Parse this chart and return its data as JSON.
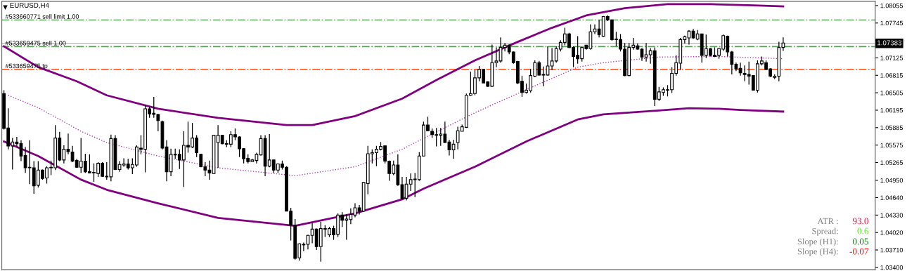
{
  "chart_data": {
    "type": "candlestick",
    "title": "EURUSD,H4",
    "categories": [
      null,
      null,
      null,
      null,
      null,
      null,
      null,
      null,
      null,
      null,
      null,
      null,
      null,
      null,
      null,
      null,
      null,
      null,
      null,
      null,
      null,
      null,
      null,
      null,
      null,
      null,
      null,
      null,
      null,
      null,
      null,
      null,
      null,
      null,
      null,
      null,
      null,
      null,
      null,
      null,
      null,
      null,
      null,
      null,
      null,
      null,
      null,
      null,
      null,
      null,
      null,
      null,
      null,
      null,
      null,
      null,
      null,
      null,
      null,
      null,
      null,
      null,
      null,
      null,
      null,
      null,
      null,
      null,
      null,
      null,
      null,
      null,
      null,
      null,
      null,
      null,
      null,
      null,
      null,
      null,
      null,
      null,
      null,
      null,
      null,
      null,
      null,
      null,
      null,
      null,
      null,
      null,
      null,
      null,
      null,
      null,
      null,
      null,
      null,
      null,
      null,
      null,
      null,
      null,
      null,
      null,
      null,
      null,
      null,
      null,
      null,
      null,
      null,
      null,
      null,
      null,
      null,
      null,
      null,
      null,
      null,
      null,
      null,
      null,
      null,
      null,
      null,
      null,
      null,
      null,
      null,
      null,
      null,
      null,
      null,
      null,
      null,
      null,
      null,
      null,
      null,
      null,
      null,
      null,
      null,
      null,
      null,
      null,
      null,
      null,
      null,
      null,
      null,
      null,
      null,
      null,
      null,
      null,
      null,
      null,
      null,
      null,
      null,
      null,
      null,
      null,
      null,
      null,
      null,
      null,
      null,
      null,
      null,
      null,
      null,
      null,
      null,
      null,
      null,
      null,
      null,
      null,
      null,
      null,
      null,
      null,
      null,
      null,
      null,
      null,
      null,
      null,
      null,
      null,
      null,
      null,
      null,
      null,
      null,
      null,
      null,
      null,
      null,
      null
    ],
    "ohlc": [
      [
        1.0649,
        1.0655,
        1.0585,
        1.0587
      ],
      [
        1.0588,
        1.0623,
        1.055,
        1.0556
      ],
      [
        1.0556,
        1.057,
        1.0514,
        1.0563
      ],
      [
        1.0563,
        1.0572,
        1.0554,
        1.056
      ],
      [
        1.056,
        1.0566,
        1.0529,
        1.0538
      ],
      [
        1.0539,
        1.0554,
        1.0508,
        1.0517
      ],
      [
        1.0518,
        1.0566,
        1.0488,
        1.0517
      ],
      [
        1.0517,
        1.0529,
        1.0471,
        1.0485
      ],
      [
        1.0486,
        1.0529,
        1.0482,
        1.0513
      ],
      [
        1.0513,
        1.0514,
        1.0496,
        1.0498
      ],
      [
        1.0499,
        1.052,
        1.0489,
        1.0517
      ],
      [
        1.0518,
        1.053,
        1.0504,
        1.0517
      ],
      [
        1.0517,
        1.0593,
        1.0513,
        1.057
      ],
      [
        1.057,
        1.0581,
        1.0529,
        1.0531
      ],
      [
        1.0531,
        1.0557,
        1.0525,
        1.055
      ],
      [
        1.055,
        1.0578,
        1.0541,
        1.0546
      ],
      [
        1.0545,
        1.0556,
        1.0527,
        1.0529
      ],
      [
        1.053,
        1.0533,
        1.0517,
        1.0518
      ],
      [
        1.0518,
        1.057,
        1.0508,
        1.0529
      ],
      [
        1.0529,
        1.0542,
        1.0508,
        1.051
      ],
      [
        1.051,
        1.0541,
        1.0507,
        1.0508
      ],
      [
        1.0508,
        1.0525,
        1.0492,
        1.0509
      ],
      [
        1.0507,
        1.0527,
        1.0501,
        1.0525
      ],
      [
        1.0525,
        1.0527,
        1.0501,
        1.0502
      ],
      [
        1.0502,
        1.0527,
        1.0496,
        1.0501
      ],
      [
        1.0501,
        1.0576,
        1.0493,
        1.0569
      ],
      [
        1.0569,
        1.0575,
        1.0513,
        1.0514
      ],
      [
        1.0514,
        1.0529,
        1.051,
        1.0523
      ],
      [
        1.0522,
        1.0534,
        1.0519,
        1.0524
      ],
      [
        1.0524,
        1.0533,
        1.0514,
        1.0517
      ],
      [
        1.0517,
        1.0534,
        1.0506,
        1.0523
      ],
      [
        1.0522,
        1.0557,
        1.0519,
        1.0554
      ],
      [
        1.0552,
        1.0575,
        1.0541,
        1.055
      ],
      [
        1.055,
        1.0629,
        1.0509,
        1.0622
      ],
      [
        1.0622,
        1.0625,
        1.0606,
        1.0613
      ],
      [
        1.0614,
        1.0643,
        1.0606,
        1.0612
      ],
      [
        1.0612,
        1.0613,
        1.0582,
        1.0601
      ],
      [
        1.0599,
        1.0601,
        1.055,
        1.0552
      ],
      [
        1.0554,
        1.0566,
        1.0493,
        1.051
      ],
      [
        1.051,
        1.0551,
        1.0502,
        1.0541
      ],
      [
        1.0541,
        1.0551,
        1.0533,
        1.054
      ],
      [
        1.0541,
        1.055,
        1.0515,
        1.0531
      ],
      [
        1.0531,
        1.0582,
        1.0483,
        1.0557
      ],
      [
        1.0557,
        1.0599,
        1.0544,
        1.0554
      ],
      [
        1.0554,
        1.0597,
        1.0552,
        1.057
      ],
      [
        1.057,
        1.0575,
        1.0536,
        1.0544
      ],
      [
        1.0541,
        1.0542,
        1.0518,
        1.0519
      ],
      [
        1.0519,
        1.0527,
        1.0502,
        1.0513
      ],
      [
        1.0513,
        1.053,
        1.0496,
        1.0508
      ],
      [
        1.0507,
        1.0575,
        1.0507,
        1.0575
      ],
      [
        1.0562,
        1.0593,
        1.0517,
        1.0575
      ],
      [
        1.0575,
        1.0575,
        1.0559,
        1.056
      ],
      [
        1.056,
        1.0566,
        1.0554,
        1.0559
      ],
      [
        1.0559,
        1.0582,
        1.0554,
        1.0576
      ],
      [
        1.0576,
        1.0587,
        1.0566,
        1.0572
      ],
      [
        1.0572,
        1.0573,
        1.0536,
        1.0551
      ],
      [
        1.0551,
        1.0552,
        1.0525,
        1.0533
      ],
      [
        1.0534,
        1.0541,
        1.0525,
        1.0528
      ],
      [
        1.0528,
        1.0533,
        1.0527,
        1.0531
      ],
      [
        1.053,
        1.0544,
        1.0525,
        1.0541
      ],
      [
        1.054,
        1.0575,
        1.0539,
        1.0569
      ],
      [
        1.0569,
        1.0575,
        1.0502,
        1.052
      ],
      [
        1.052,
        1.0577,
        1.0518,
        1.0531
      ],
      [
        1.0531,
        1.0531,
        1.0508,
        1.0513
      ],
      [
        1.0513,
        1.0525,
        1.0508,
        1.0524
      ],
      [
        1.0524,
        1.053,
        1.0514,
        1.0518
      ],
      [
        1.0518,
        1.052,
        1.044,
        1.044
      ],
      [
        1.044,
        1.0446,
        1.0388,
        1.0415
      ],
      [
        1.0415,
        1.0426,
        1.0354,
        1.0356
      ],
      [
        1.0357,
        1.0383,
        1.0352,
        1.0382
      ],
      [
        1.038,
        1.0384,
        1.0369,
        1.0381
      ],
      [
        1.0381,
        1.0398,
        1.0372,
        1.0397
      ],
      [
        1.0397,
        1.0419,
        1.0383,
        1.0408
      ],
      [
        1.0408,
        1.0409,
        1.0371,
        1.0377
      ],
      [
        1.0377,
        1.0421,
        1.035,
        1.0409
      ],
      [
        1.0409,
        1.0415,
        1.0394,
        1.0408
      ],
      [
        1.0398,
        1.0412,
        1.0394,
        1.0409
      ],
      [
        1.0409,
        1.0414,
        1.0389,
        1.0398
      ],
      [
        1.0399,
        1.0436,
        1.0394,
        1.0433
      ],
      [
        1.0433,
        1.0438,
        1.0412,
        1.0424
      ],
      [
        1.0424,
        1.0434,
        1.0389,
        1.0426
      ],
      [
        1.0425,
        1.0445,
        1.0417,
        1.0434
      ],
      [
        1.0433,
        1.0454,
        1.0429,
        1.0446
      ],
      [
        1.0446,
        1.0451,
        1.0434,
        1.044
      ],
      [
        1.044,
        1.0492,
        1.0439,
        1.0491
      ],
      [
        1.0489,
        1.0556,
        1.047,
        1.0542
      ],
      [
        1.0542,
        1.055,
        1.0525,
        1.0544
      ],
      [
        1.0544,
        1.0556,
        1.052,
        1.055
      ],
      [
        1.055,
        1.0563,
        1.0548,
        1.0555
      ],
      [
        1.0556,
        1.0557,
        1.0525,
        1.0529
      ],
      [
        1.0529,
        1.053,
        1.0494,
        1.0507
      ],
      [
        1.0507,
        1.053,
        1.0504,
        1.0522
      ],
      [
        1.0522,
        1.0541,
        1.0485,
        1.0487
      ],
      [
        1.0487,
        1.0501,
        1.0461,
        1.0463
      ],
      [
        1.0463,
        1.0501,
        1.0459,
        1.0488
      ],
      [
        1.0488,
        1.0507,
        1.0476,
        1.0496
      ],
      [
        1.0496,
        1.0508,
        1.0465,
        1.0497
      ],
      [
        1.0496,
        1.0545,
        1.0494,
        1.0538
      ],
      [
        1.0538,
        1.0599,
        1.0538,
        1.0593
      ],
      [
        1.0593,
        1.0608,
        1.0582,
        1.0583
      ],
      [
        1.0582,
        1.0587,
        1.057,
        1.0576
      ],
      [
        1.0576,
        1.0588,
        1.0555,
        1.0575
      ],
      [
        1.0575,
        1.0588,
        1.0556,
        1.0577
      ],
      [
        1.0577,
        1.0599,
        1.0561,
        1.0562
      ],
      [
        1.0563,
        1.0567,
        1.0539,
        1.0549
      ],
      [
        1.0549,
        1.0567,
        1.0533,
        1.0559
      ],
      [
        1.0562,
        1.059,
        1.055,
        1.0583
      ],
      [
        1.0582,
        1.0594,
        1.0582,
        1.059
      ],
      [
        1.0589,
        1.0649,
        1.0588,
        1.0646
      ],
      [
        1.0646,
        1.0688,
        1.0645,
        1.0649
      ],
      [
        1.0649,
        1.0691,
        1.0646,
        1.0677
      ],
      [
        1.0677,
        1.0698,
        1.0671,
        1.0692
      ],
      [
        1.0692,
        1.0693,
        1.0668,
        1.0668
      ],
      [
        1.067,
        1.0671,
        1.0661,
        1.0662
      ],
      [
        1.0662,
        1.0736,
        1.0661,
        1.0704
      ],
      [
        1.0704,
        1.0731,
        1.0696,
        1.0707
      ],
      [
        1.0707,
        1.0749,
        1.0704,
        1.0731
      ],
      [
        1.0731,
        1.0739,
        1.0724,
        1.0735
      ],
      [
        1.0735,
        1.0736,
        1.0719,
        1.0723
      ],
      [
        1.0723,
        1.0724,
        1.0702,
        1.0704
      ],
      [
        1.0706,
        1.0707,
        1.0666,
        1.0668
      ],
      [
        1.0671,
        1.0681,
        1.0643,
        1.0651
      ],
      [
        1.0651,
        1.0667,
        1.0649,
        1.0655
      ],
      [
        1.0654,
        1.0693,
        1.0651,
        1.0681
      ],
      [
        1.068,
        1.0708,
        1.0678,
        1.0704
      ],
      [
        1.0704,
        1.0707,
        1.0681,
        1.0682
      ],
      [
        1.0683,
        1.0697,
        1.0662,
        1.0682
      ],
      [
        1.0682,
        1.0733,
        1.0681,
        1.0698
      ],
      [
        1.0698,
        1.073,
        1.0691,
        1.0707
      ],
      [
        1.0707,
        1.0733,
        1.0704,
        1.0729
      ],
      [
        1.0728,
        1.0744,
        1.0724,
        1.074
      ],
      [
        1.074,
        1.0766,
        1.0735,
        1.0755
      ],
      [
        1.0755,
        1.0757,
        1.073,
        1.0731
      ],
      [
        1.0731,
        1.0733,
        1.0696,
        1.0715
      ],
      [
        1.0717,
        1.0751,
        1.0702,
        1.0711
      ],
      [
        1.0711,
        1.0733,
        1.0706,
        1.0731
      ],
      [
        1.0735,
        1.0735,
        1.0727,
        1.0729
      ],
      [
        1.0729,
        1.0772,
        1.0727,
        1.0759
      ],
      [
        1.0759,
        1.0772,
        1.0755,
        1.0764
      ],
      [
        1.0764,
        1.078,
        1.0749,
        1.0754
      ],
      [
        1.0751,
        1.0787,
        1.075,
        1.0786
      ],
      [
        1.0786,
        1.0788,
        1.0778,
        1.078
      ],
      [
        1.078,
        1.078,
        1.0743,
        1.0745
      ],
      [
        1.0746,
        1.0759,
        1.0733,
        1.0745
      ],
      [
        1.0745,
        1.0755,
        1.0724,
        1.0728
      ],
      [
        1.0728,
        1.0739,
        1.068,
        1.0681
      ],
      [
        1.0681,
        1.0739,
        1.068,
        1.0731
      ],
      [
        1.0731,
        1.0748,
        1.0727,
        1.0735
      ],
      [
        1.0734,
        1.0738,
        1.0727,
        1.0728
      ],
      [
        1.0728,
        1.073,
        1.0707,
        1.0714
      ],
      [
        1.0714,
        1.0739,
        1.0706,
        1.0718
      ],
      [
        1.0718,
        1.073,
        1.0702,
        1.0725
      ],
      [
        1.0725,
        1.0731,
        1.0627,
        1.0639
      ],
      [
        1.0639,
        1.0661,
        1.0636,
        1.0652
      ],
      [
        1.0651,
        1.066,
        1.0645,
        1.0656
      ],
      [
        1.0656,
        1.0664,
        1.0644,
        1.0655
      ],
      [
        1.0656,
        1.0696,
        1.065,
        1.0685
      ],
      [
        1.0685,
        1.0717,
        1.0681,
        1.0704
      ],
      [
        1.0703,
        1.0748,
        1.0691,
        1.0745
      ],
      [
        1.0745,
        1.0752,
        1.0738,
        1.075
      ],
      [
        1.0748,
        1.0762,
        1.0736,
        1.076
      ],
      [
        1.076,
        1.0764,
        1.0746,
        1.0748
      ],
      [
        1.0746,
        1.0762,
        1.0744,
        1.0755
      ],
      [
        1.0755,
        1.0755,
        1.0704,
        1.0717
      ],
      [
        1.0717,
        1.0754,
        1.0712,
        1.0729
      ],
      [
        1.0729,
        1.073,
        1.0715,
        1.0717
      ],
      [
        1.0717,
        1.0731,
        1.0714,
        1.0715
      ],
      [
        1.0717,
        1.073,
        1.0711,
        1.0729
      ],
      [
        1.0728,
        1.0754,
        1.0725,
        1.0752
      ],
      [
        1.0751,
        1.0752,
        1.0715,
        1.0723
      ],
      [
        1.0723,
        1.0725,
        1.0683,
        1.0701
      ],
      [
        1.0701,
        1.0704,
        1.0689,
        1.0693
      ],
      [
        1.0694,
        1.0704,
        1.0681,
        1.0686
      ],
      [
        1.0685,
        1.0699,
        1.0671,
        1.0683
      ],
      [
        1.0683,
        1.0706,
        1.0665,
        1.068
      ],
      [
        1.0681,
        1.0681,
        1.0655,
        1.0655
      ],
      [
        1.0655,
        1.0708,
        1.0651,
        1.0702
      ],
      [
        1.0702,
        1.0715,
        1.0699,
        1.0707
      ],
      [
        1.0704,
        1.0708,
        1.0691,
        1.0692
      ],
      [
        1.0693,
        1.0694,
        1.0678,
        1.068
      ],
      [
        1.0678,
        1.0683,
        1.0675,
        1.068
      ],
      [
        1.068,
        1.0741,
        1.0671,
        1.0731
      ],
      [
        1.0731,
        1.0749,
        1.0725,
        1.0739
      ],
      null,
      null,
      null,
      null,
      null,
      null,
      null,
      null,
      null,
      null,
      null,
      null,
      null,
      null,
      null,
      null,
      null,
      null,
      null,
      null,
      null
    ],
    "series": [
      {
        "type": "line",
        "color": "#800080",
        "line_style": "solid",
        "values": [
          1.0733,
          null,
          null,
          null,
          null,
          null,
          null,
          null,
          1.0696,
          null,
          null,
          null,
          null,
          null,
          null,
          null,
          null,
          1.0671,
          null,
          null,
          null,
          null,
          null,
          null,
          1.0646,
          null,
          null,
          null,
          null,
          null,
          null,
          null,
          null,
          null,
          null,
          null,
          1.0622,
          null,
          null,
          null,
          null,
          null,
          null,
          null,
          null,
          null,
          null,
          null,
          null,
          null,
          1.0606,
          null,
          null,
          null,
          null,
          null,
          null,
          null,
          null,
          null,
          null,
          null,
          null,
          null,
          null,
          null,
          1.0593,
          null,
          null,
          null,
          null,
          null,
          1.0593,
          null,
          null,
          null,
          null,
          null,
          null,
          null,
          null,
          null,
          1.0609,
          null,
          null,
          null,
          null,
          null,
          null,
          null,
          null,
          null,
          null,
          1.064,
          null,
          null,
          null,
          null,
          null,
          null,
          null,
          1.0673,
          null,
          null,
          null,
          null,
          null,
          null,
          null,
          null,
          1.0708,
          null,
          null,
          null,
          null,
          null,
          null,
          null,
          null,
          null,
          1.0741,
          null,
          null,
          null,
          null,
          null,
          null,
          null,
          1.0766,
          null,
          null,
          null,
          null,
          null,
          null,
          null,
          1.0788,
          null,
          null,
          null,
          null,
          null,
          null,
          null,
          null,
          1.0801,
          null,
          null,
          null,
          null,
          null,
          null,
          null,
          null,
          null,
          1.0808,
          null,
          null,
          null,
          null,
          null,
          null,
          null,
          null,
          null,
          1.0808,
          null,
          null,
          null,
          null,
          null,
          null,
          null,
          null,
          null,
          1.0806,
          null,
          null,
          null,
          null,
          null,
          null,
          1.0804,
          null,
          null,
          null,
          null,
          null,
          null,
          null,
          null,
          null,
          null,
          null,
          null,
          null,
          null,
          null,
          null,
          null,
          null,
          null,
          null,
          null
        ]
      },
      {
        "type": "line",
        "color": "#b040b0",
        "line_style": "dotted",
        "values": [
          null,
          1.0646,
          null,
          null,
          null,
          null,
          null,
          null,
          1.0624,
          null,
          null,
          null,
          null,
          null,
          null,
          null,
          null,
          null,
          1.0582,
          null,
          null,
          null,
          null,
          null,
          1.0562,
          null,
          null,
          null,
          null,
          null,
          null,
          null,
          null,
          null,
          null,
          null,
          1.0538,
          null,
          null,
          null,
          null,
          null,
          null,
          null,
          null,
          null,
          null,
          null,
          null,
          null,
          1.0517,
          null,
          null,
          null,
          null,
          null,
          null,
          null,
          null,
          null,
          null,
          null,
          null,
          null,
          null,
          null,
          null,
          null,
          1.0503,
          null,
          null,
          null,
          null,
          null,
          null,
          null,
          null,
          null,
          null,
          null,
          null,
          null,
          1.0519,
          null,
          null,
          null,
          null,
          null,
          null,
          null,
          null,
          null,
          null,
          1.055,
          null,
          null,
          null,
          null,
          null,
          null,
          null,
          1.0581,
          null,
          null,
          null,
          null,
          null,
          null,
          null,
          null,
          1.0615,
          null,
          null,
          null,
          null,
          null,
          null,
          null,
          null,
          null,
          null,
          null,
          1.0656,
          null,
          null,
          null,
          null,
          null,
          null,
          null,
          null,
          null,
          null,
          null,
          1.0696,
          null,
          null,
          null,
          null,
          null,
          1.0704,
          null,
          null,
          null,
          null,
          null,
          null,
          null,
          null,
          null,
          null,
          null,
          null,
          1.0714,
          null,
          null,
          null,
          null,
          null,
          null,
          null,
          null,
          null,
          null,
          null,
          null,
          null,
          1.0715,
          null,
          null,
          null,
          null,
          null,
          null,
          null,
          null,
          null,
          null,
          null,
          null,
          null,
          null,
          1.0711,
          null,
          null,
          null,
          null,
          null,
          null,
          null,
          null,
          null,
          null,
          null,
          null,
          null,
          null,
          null,
          null,
          null,
          null,
          null,
          null,
          null
        ]
      },
      {
        "type": "line",
        "color": "#800080",
        "line_style": "solid",
        "values": [
          1.0564,
          null,
          null,
          null,
          null,
          null,
          null,
          null,
          1.0538,
          null,
          null,
          null,
          null,
          null,
          null,
          null,
          null,
          null,
          1.0496,
          null,
          null,
          null,
          null,
          null,
          1.0478,
          null,
          null,
          null,
          null,
          null,
          null,
          null,
          null,
          null,
          null,
          null,
          1.0454,
          null,
          null,
          null,
          null,
          null,
          null,
          null,
          null,
          null,
          null,
          null,
          null,
          null,
          1.0428,
          null,
          null,
          null,
          null,
          null,
          null,
          null,
          null,
          null,
          null,
          null,
          null,
          null,
          null,
          null,
          null,
          null,
          1.0414,
          null,
          null,
          null,
          null,
          null,
          null,
          null,
          null,
          null,
          null,
          null,
          null,
          null,
          1.0436,
          null,
          null,
          null,
          null,
          null,
          null,
          null,
          null,
          null,
          null,
          1.0461,
          null,
          null,
          null,
          null,
          1.048,
          null,
          null,
          null,
          null,
          null,
          null,
          null,
          null,
          null,
          null,
          null,
          1.0519,
          null,
          null,
          null,
          null,
          null,
          null,
          null,
          null,
          null,
          null,
          null,
          1.0564,
          null,
          null,
          null,
          null,
          null,
          null,
          null,
          null,
          null,
          null,
          null,
          1.0603,
          null,
          null,
          null,
          null,
          null,
          1.0612,
          null,
          null,
          null,
          null,
          null,
          null,
          null,
          null,
          null,
          null,
          null,
          null,
          1.0619,
          null,
          null,
          null,
          null,
          null,
          null,
          1.0623,
          null,
          null,
          null,
          null,
          null,
          null,
          1.0622,
          null,
          null,
          null,
          null,
          1.062,
          null,
          null,
          null,
          null,
          null,
          null,
          null,
          null,
          null,
          1.0617,
          null,
          null,
          null,
          null,
          null,
          null,
          null,
          null,
          null,
          null,
          null,
          null,
          null,
          null,
          null,
          null,
          null,
          null,
          null,
          null,
          null
        ]
      }
    ],
    "ylim": [
      1.0336,
      1.0813
    ],
    "yticks": [
      1.08055,
      1.07745,
      {
        "value": 1.07435,
        "label": null
      },
      1.07125,
      1.06815,
      1.06505,
      1.06195,
      1.05885,
      1.05575,
      1.05265,
      {
        "value": 1.0495,
        "label": "1.04950"
      },
      {
        "value": 1.0464,
        "label": "1.04640"
      },
      {
        "value": 1.0433,
        "label": "1.04330"
      },
      {
        "value": 1.0402,
        "label": "1.04020"
      },
      {
        "value": 1.0371,
        "label": "1.03710"
      },
      {
        "value": 1.034,
        "label": "1.03400"
      }
    ],
    "tick_labels": "y",
    "grid": false,
    "legend": false,
    "ref_lines": [
      {
        "axis": "y",
        "value": 1.07798,
        "label": "#533660771 sell limit 1.00",
        "color": "#5aa05a",
        "line_style": "dashdot"
      },
      {
        "axis": "y",
        "value": 1.07383,
        "label": "1.07383",
        "color": "#c0c0c0",
        "line_style": "solid"
      },
      {
        "axis": "y",
        "value": 1.07325,
        "label": "#533659475 sell 1.00",
        "color": "#5aa05a",
        "line_style": "dashdot"
      },
      {
        "axis": "y",
        "value": 1.06919,
        "label": "#533659475 tp",
        "color": "#ff6030",
        "line_style": "dashdot"
      }
    ],
    "annotations": [
      "ATR :",
      "93.0",
      "Spread:",
      "0.6",
      "Slope (H1):",
      "0.05",
      "Slope (H4):",
      "-0.07"
    ]
  }
}
